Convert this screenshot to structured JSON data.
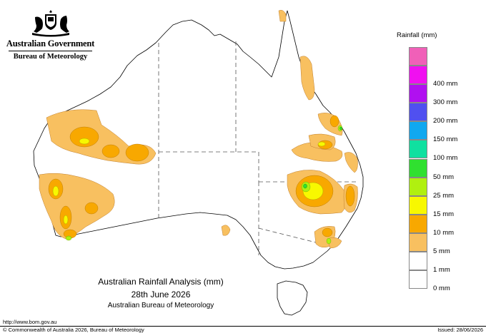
{
  "header": {
    "government": "Australian Government",
    "bureau": "Bureau of Meteorology"
  },
  "icons": {
    "crest": "commonwealth-coat-of-arms"
  },
  "map": {
    "title": "Australian Rainfall Analysis (mm)",
    "date": "28th June 2026",
    "source": "Australian Bureau of Meteorology"
  },
  "legend": {
    "title": "Rainfall (mm)",
    "items": [
      {
        "label": "",
        "color": "#f060b8"
      },
      {
        "label": "400 mm",
        "color": "#f010f0"
      },
      {
        "label": "300 mm",
        "color": "#b010f0"
      },
      {
        "label": "200 mm",
        "color": "#5050f0"
      },
      {
        "label": "150 mm",
        "color": "#10a8f0"
      },
      {
        "label": "100 mm",
        "color": "#10e0a0"
      },
      {
        "label": "50 mm",
        "color": "#30e030"
      },
      {
        "label": "25 mm",
        "color": "#b0f010"
      },
      {
        "label": "15 mm",
        "color": "#f8f800"
      },
      {
        "label": "10 mm",
        "color": "#f8a800"
      },
      {
        "label": "5 mm",
        "color": "#f8c060"
      },
      {
        "label": "1 mm",
        "color": "#ffffff"
      },
      {
        "label": "0 mm",
        "color": "#ffffff"
      }
    ]
  },
  "footer": {
    "url": "http://www.bom.gov.au",
    "copyright": "© Commonwealth of Australia 2026, Bureau of Meteorology",
    "issued": "Issued: 28/06/2026"
  }
}
